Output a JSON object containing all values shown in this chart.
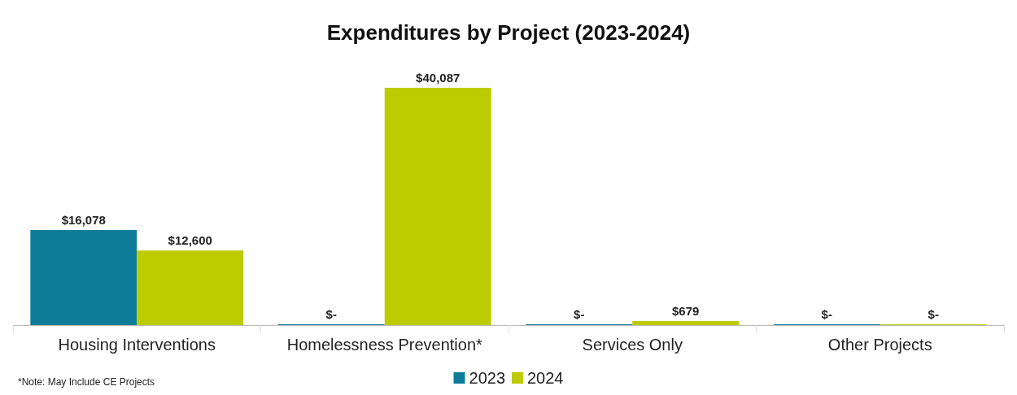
{
  "chart_data": {
    "type": "bar",
    "title": "Expenditures by Project (2023-2024)",
    "categories": [
      "Housing Interventions",
      "Homelessness Prevention*",
      "Services Only",
      "Other Projects"
    ],
    "series": [
      {
        "name": "2023",
        "color": "#0e7c99",
        "values": [
          16078,
          0,
          0,
          0
        ],
        "value_labels": [
          "$16,078",
          "$-",
          "$-",
          "$-"
        ]
      },
      {
        "name": "2024",
        "color": "#bccc00",
        "values": [
          12600,
          40087,
          679,
          0
        ],
        "value_labels": [
          "$12,600",
          "$40,087",
          "$679",
          "$-"
        ]
      }
    ],
    "annotations": [
      "*Note: May Include CE Projects"
    ],
    "legend": "bottom",
    "grid": false
  }
}
